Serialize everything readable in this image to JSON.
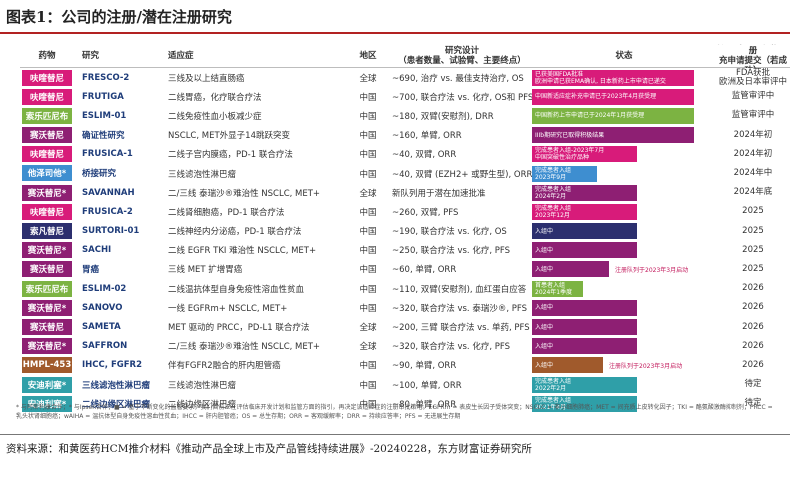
{
  "figure_title": "图表1：公司的注册/潜在注册研究",
  "columns": {
    "drug": "药物",
    "study": "研究",
    "indication": "适应症",
    "region": "地区",
    "design": "研究设计\n（患者数量、试验臂、主要终点）",
    "status": "状态",
    "filing": "拟新药上市申请/注册\n充申请提交（若成功）"
  },
  "colors": {
    "pink": "#d81b7a",
    "green": "#7cb342",
    "purple": "#8e1f73",
    "blue": "#3e8ed0",
    "navy": "#2c2f6e",
    "brown": "#a05a2c",
    "teal": "#2f9fa8",
    "study_text": "#1f3d7a",
    "title_rule": "#b22222"
  },
  "rows": [
    {
      "drug": "呋喹替尼",
      "drug_color": "#d81b7a",
      "study": "FRESCO-2",
      "indication": "三线及以上结直肠癌",
      "region": "全球",
      "design": "~690, 治疗 vs. 最佳支持治疗, OS",
      "status": "已获美国FDA批准\n欧洲申请已获EMA确认, 日本新药上市申请已递交",
      "status_color": "#d81b7a",
      "status_fraction": 0.95,
      "status_note": "",
      "filing": "FDA获批\n欧洲及日本审评中"
    },
    {
      "drug": "呋喹替尼",
      "drug_color": "#d81b7a",
      "study": "FRUTIGA",
      "indication": "二线胃癌，化疗联合疗法",
      "region": "中国",
      "design": "~700, 联合疗法 vs. 化疗, OS和 PFS",
      "status": "中国新适应症补充申请已于2023年4月获受理",
      "status_color": "#d81b7a",
      "status_fraction": 0.95,
      "status_note": "",
      "filing": "监管审评中"
    },
    {
      "drug": "索乐匹尼布",
      "drug_color": "#7cb342",
      "study": "ESLIM-01",
      "indication": "二线免疫性血小板减少症",
      "region": "中国",
      "design": "~180, 双臂(安慰剂), DRR",
      "status": "中国新药上市申请已于2024年1月获受理",
      "status_color": "#7cb342",
      "status_fraction": 0.95,
      "status_note": "",
      "filing": "监管审评中"
    },
    {
      "drug": "赛沃替尼",
      "drug_color": "#8e1f73",
      "study": "确证性研究",
      "indication": "NSCLC, MET外显子14跳跃突变",
      "region": "中国",
      "design": "~160, 单臂, ORR",
      "status": "IIIb期研究已取得积极结果",
      "status_color": "#8e1f73",
      "status_fraction": 0.95,
      "status_note": "",
      "filing": "2024年初"
    },
    {
      "drug": "呋喹替尼",
      "drug_color": "#d81b7a",
      "study": "FRUSICA-1",
      "indication": "二线子宫内膜癌，PD-1 联合疗法",
      "region": "中国",
      "design": "~40, 双臂, ORR",
      "status": "完成患者入组-2023年7月\n中国突破性治疗品种",
      "status_color": "#d81b7a",
      "status_fraction": 0.62,
      "status_note": "",
      "filing": "2024年初"
    },
    {
      "drug": "他泽司他*",
      "drug_color": "#3e8ed0",
      "study": "桥接研究",
      "indication": "三线滤泡性淋巴瘤",
      "region": "中国",
      "design": "~40, 双臂 (EZH2+ 或野生型), ORR",
      "status": "完成患者入组\n2023年9月",
      "status_color": "#3e8ed0",
      "status_fraction": 0.38,
      "status_note": "",
      "filing": "2024年中"
    },
    {
      "drug": "赛沃替尼*",
      "drug_color": "#8e1f73",
      "study": "SAVANNAH",
      "indication": "二/三线 泰瑞沙®难治性 NSCLC, MET+",
      "region": "全球",
      "design": "新队列用于潜在加速批准",
      "status": "完成患者入组\n2024年2月",
      "status_color": "#8e1f73",
      "status_fraction": 0.62,
      "status_note": "",
      "filing": "2024年底"
    },
    {
      "drug": "呋喹替尼",
      "drug_color": "#d81b7a",
      "study": "FRUSICA-2",
      "indication": "二线肾细胞癌，PD-1 联合疗法",
      "region": "中国",
      "design": "~260, 双臂, PFS",
      "status": "完成患者入组\n2023年12月",
      "status_color": "#d81b7a",
      "status_fraction": 0.62,
      "status_note": "",
      "filing": "2025"
    },
    {
      "drug": "索凡替尼",
      "drug_color": "#2c2f6e",
      "study": "SURTORI-01",
      "indication": "二线神经内分泌癌，PD-1 联合疗法",
      "region": "中国",
      "design": "~190, 联合疗法 vs. 化疗, OS",
      "status": "入组中",
      "status_color": "#2c2f6e",
      "status_fraction": 0.62,
      "status_note": "",
      "filing": "2025"
    },
    {
      "drug": "赛沃替尼*",
      "drug_color": "#8e1f73",
      "study": "SACHI",
      "indication": "二线 EGFR TKI 难治性 NSCLC, MET+",
      "region": "中国",
      "design": "~250, 联合疗法 vs. 化疗, PFS",
      "status": "入组中",
      "status_color": "#8e1f73",
      "status_fraction": 0.62,
      "status_note": "",
      "filing": "2025"
    },
    {
      "drug": "赛沃替尼",
      "drug_color": "#8e1f73",
      "study": "胃癌",
      "indication": "三线 MET 扩增胃癌",
      "region": "中国",
      "design": "~60, 单臂, ORR",
      "status": "入组中",
      "status_color": "#8e1f73",
      "status_fraction": 0.45,
      "status_note": "注册队列于2023年3月启动",
      "filing": "2025"
    },
    {
      "drug": "索乐匹尼布",
      "drug_color": "#7cb342",
      "study": "ESLIM-02",
      "indication": "二线温抗体型自身免疫性溶血性贫血",
      "region": "中国",
      "design": "~110, 双臂(安慰剂), 血红蛋白应答",
      "status": "首患者入组\n2024年1季度",
      "status_color": "#7cb342",
      "status_fraction": 0.3,
      "status_note": "",
      "filing": "2026"
    },
    {
      "drug": "赛沃替尼*",
      "drug_color": "#8e1f73",
      "study": "SANOVO",
      "indication": "一线 EGFRm+ NSCLC, MET+",
      "region": "中国",
      "design": "~320, 联合疗法 vs. 泰瑞沙®, PFS",
      "status": "入组中",
      "status_color": "#8e1f73",
      "status_fraction": 0.62,
      "status_note": "",
      "filing": "2026"
    },
    {
      "drug": "赛沃替尼",
      "drug_color": "#8e1f73",
      "study": "SAMETA",
      "indication": "MET 驱动的 PRCC，PD-L1 联合疗法",
      "region": "全球",
      "design": "~200, 三臂 联合疗法 vs. 单药, PFS",
      "status": "入组中",
      "status_color": "#8e1f73",
      "status_fraction": 0.62,
      "status_note": "",
      "filing": "2026"
    },
    {
      "drug": "赛沃替尼*",
      "drug_color": "#8e1f73",
      "study": "SAFFRON",
      "indication": "二/三线 泰瑞沙®难治性 NSCLC, MET+",
      "region": "全球",
      "design": "~320, 联合疗法 vs. 化疗, PFS",
      "status": "入组中",
      "status_color": "#8e1f73",
      "status_fraction": 0.62,
      "status_note": "",
      "filing": "2026"
    },
    {
      "drug": "HMPL-453",
      "drug_color": "#a05a2c",
      "study": "IHCC, FGFR2",
      "indication": "伴有FGFR2融合的肝内胆管癌",
      "region": "中国",
      "design": "~90, 单臂, ORR",
      "status": "入组中",
      "status_color": "#a05a2c",
      "status_fraction": 0.42,
      "status_note": "注册队列于2023年3月启动",
      "filing": "2026"
    },
    {
      "drug": "安迪利塞*",
      "drug_color": "#2f9fa8",
      "study": "三线滤泡性淋巴瘤",
      "indication": "三线滤泡性淋巴瘤",
      "region": "中国",
      "design": "~100, 单臂, ORR",
      "status": "完成患者入组\n2022年2月",
      "status_color": "#2f9fa8",
      "status_fraction": 0.62,
      "status_note": "",
      "filing": "待定"
    },
    {
      "drug": "安迪利塞*",
      "drug_color": "#2f9fa8",
      "study": "二线边缘区淋巴瘤",
      "indication": "二线边缘区淋巴瘤",
      "region": "中国",
      "design": "~80, 单臂, ORR",
      "status": "完成患者入组\n2021年4月",
      "status_color": "#2f9fa8",
      "status_fraction": 0.62,
      "status_note": "",
      "filing": "待定"
    }
  ],
  "footnote": "* 与阿斯利康合作；* 与Ipsen合作；■ = 基于不断变化的监管要求，我们目前正在评估临床开发计划和监管方面的指引，再决定该适应症的注册审批策略。EGFRm = 表皮生长因子受体突变；NSCLC = 非小细胞肺癌；MET = 间充质上皮转化因子；TKI = 酪氨酸激酶抑制剂；PRCC = 乳头状肾细胞癌；wAIHA = 温抗体型自身免疫性溶血性贫血；IHCC = 肝内胆管癌；OS = 总生存期；ORR = 客观缓解率；DRR = 持续应答率；PFS = 无进展生存期",
  "source": "资料来源：和黄医药HCM推介材料《推动产品全球上市及产品管线持续进展》-20240228，东方财富证券研究所"
}
